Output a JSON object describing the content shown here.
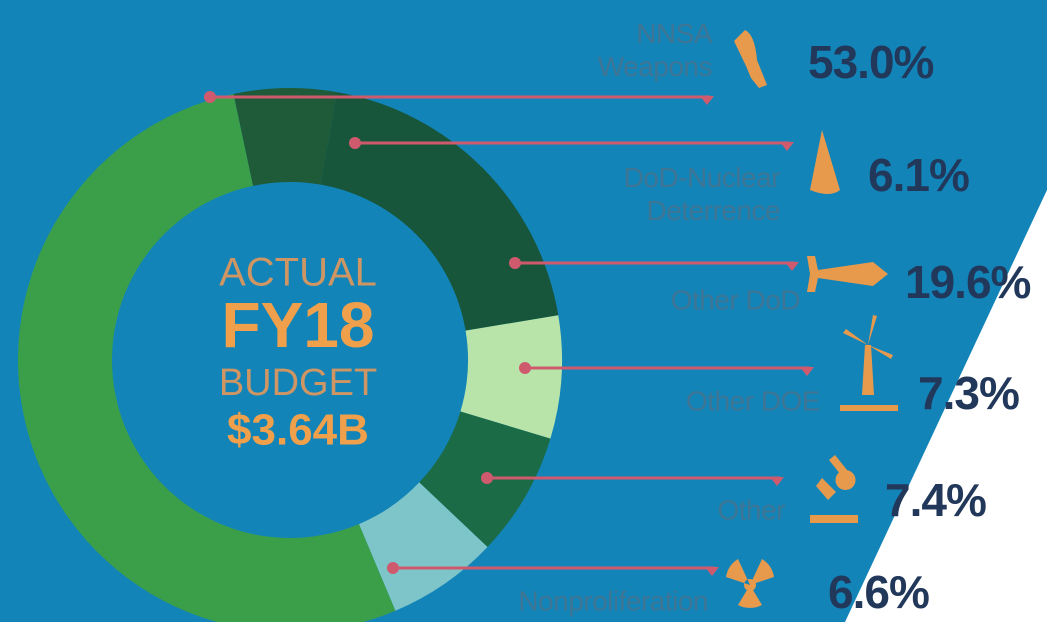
{
  "chart_data": {
    "type": "donut",
    "center_text": [
      "ACTUAL",
      "FY18",
      "BUDGET",
      "$3.64B"
    ],
    "categories": [
      "NNSA Weapons",
      "DoD-Nuclear Deterrence",
      "Other DoD",
      "Other DOE",
      "Other",
      "Nonproliferation"
    ],
    "values": [
      53.0,
      6.1,
      19.6,
      7.3,
      7.4,
      6.6
    ],
    "value_labels": [
      "53.0%",
      "6.1%",
      "19.6%",
      "7.3%",
      "7.4%",
      "6.6%"
    ],
    "colors": [
      "#3b9f4a",
      "#1f5a39",
      "#17563a",
      "#b8e4a9",
      "#1c6b47",
      "#7ec5ca"
    ]
  }
}
